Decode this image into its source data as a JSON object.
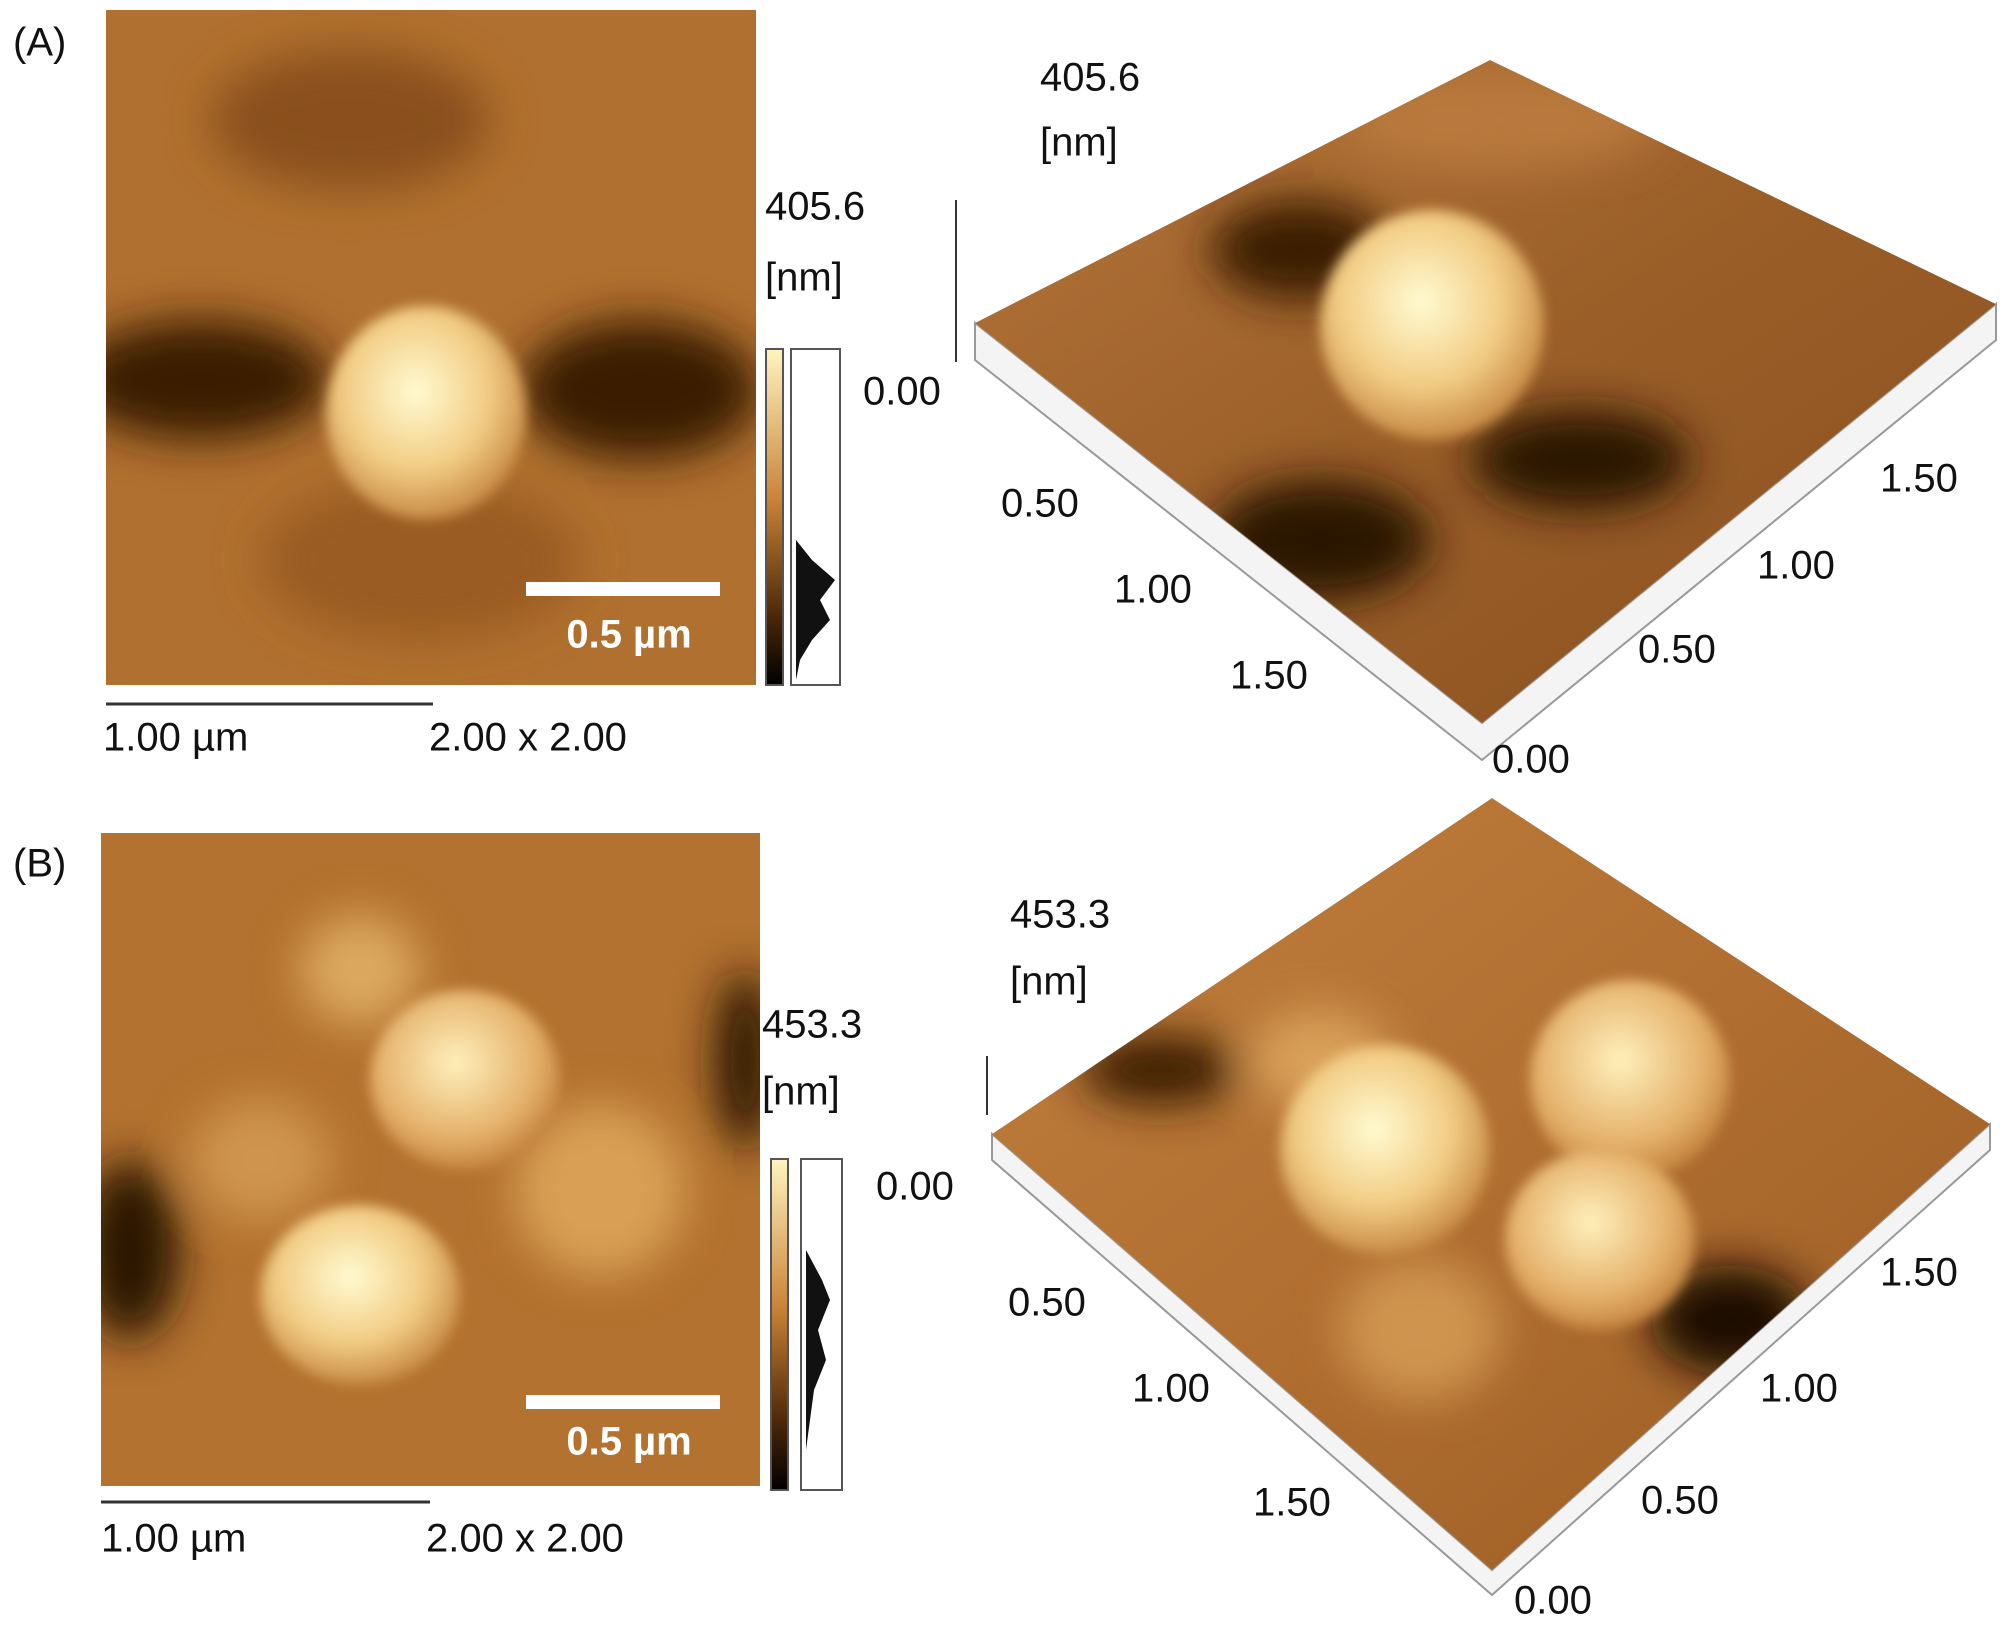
{
  "panels": [
    {
      "label": "(A)",
      "image_2d": {
        "colorbar_max": "405.6",
        "colorbar_unit": "[nm]",
        "scale_bar": "0.5 µm",
        "ruler": "1.00 µm",
        "scan_size": "2.00 x 2.00"
      },
      "image_3d": {
        "z_max": "405.6",
        "z_unit": "[nm]",
        "z_min": "0.00",
        "left_axis_ticks": [
          "0.50",
          "1.00",
          "1.50"
        ],
        "right_axis_ticks": [
          "1.50",
          "1.00",
          "0.50",
          "0.00"
        ]
      }
    },
    {
      "label": "(B)",
      "image_2d": {
        "colorbar_max": "453.3",
        "colorbar_unit": "[nm]",
        "scale_bar": "0.5 µm",
        "ruler": "1.00 µm",
        "scan_size": "2.00 x 2.00"
      },
      "image_3d": {
        "z_max": "453.3",
        "z_unit": "[nm]",
        "z_min": "0.00",
        "left_axis_ticks": [
          "0.50",
          "1.00",
          "1.50"
        ],
        "right_axis_ticks": [
          "1.50",
          "1.00",
          "0.50",
          "0.00"
        ]
      }
    }
  ]
}
